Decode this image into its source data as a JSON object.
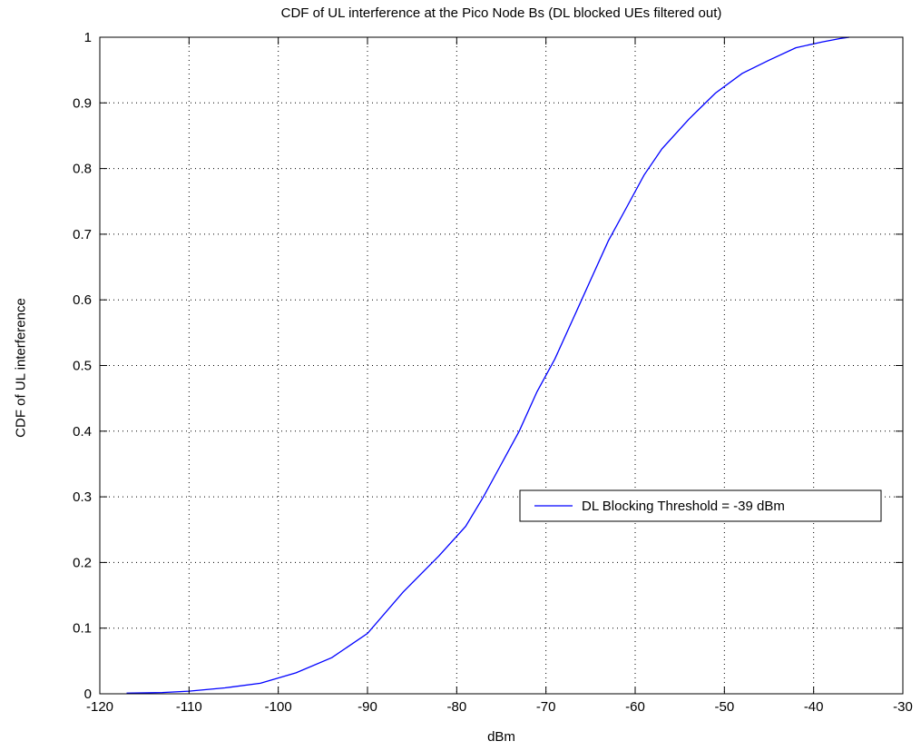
{
  "chart_data": {
    "type": "line",
    "title": "CDF of UL interference at the Pico Node Bs (DL blocked UEs filtered out)",
    "xlabel": "dBm",
    "ylabel": "CDF of UL interference",
    "xlim": [
      -120,
      -30
    ],
    "ylim": [
      0,
      1
    ],
    "xticks": [
      -120,
      -110,
      -100,
      -90,
      -80,
      -70,
      -60,
      -50,
      -40,
      -30
    ],
    "yticks": [
      0,
      0.1,
      0.2,
      0.3,
      0.4,
      0.5,
      0.6,
      0.7,
      0.8,
      0.9,
      1
    ],
    "grid": true,
    "legend_placement": "center-right",
    "series": [
      {
        "name": "DL Blocking Threshold = -39 dBm",
        "color": "#0000ff",
        "x": [
          -117,
          -113,
          -110,
          -106,
          -102,
          -98,
          -94,
          -90,
          -86,
          -82,
          -79,
          -77,
          -75,
          -73,
          -71,
          -69,
          -67,
          -65,
          -63,
          -61,
          -59,
          -57,
          -54,
          -51,
          -48,
          -45,
          -42,
          -39,
          -37,
          -36
        ],
        "y": [
          0.001,
          0.002,
          0.004,
          0.009,
          0.016,
          0.032,
          0.055,
          0.092,
          0.155,
          0.21,
          0.255,
          0.3,
          0.35,
          0.4,
          0.46,
          0.51,
          0.57,
          0.63,
          0.69,
          0.74,
          0.79,
          0.83,
          0.875,
          0.915,
          0.945,
          0.965,
          0.984,
          0.993,
          0.998,
          1.0
        ]
      }
    ]
  }
}
